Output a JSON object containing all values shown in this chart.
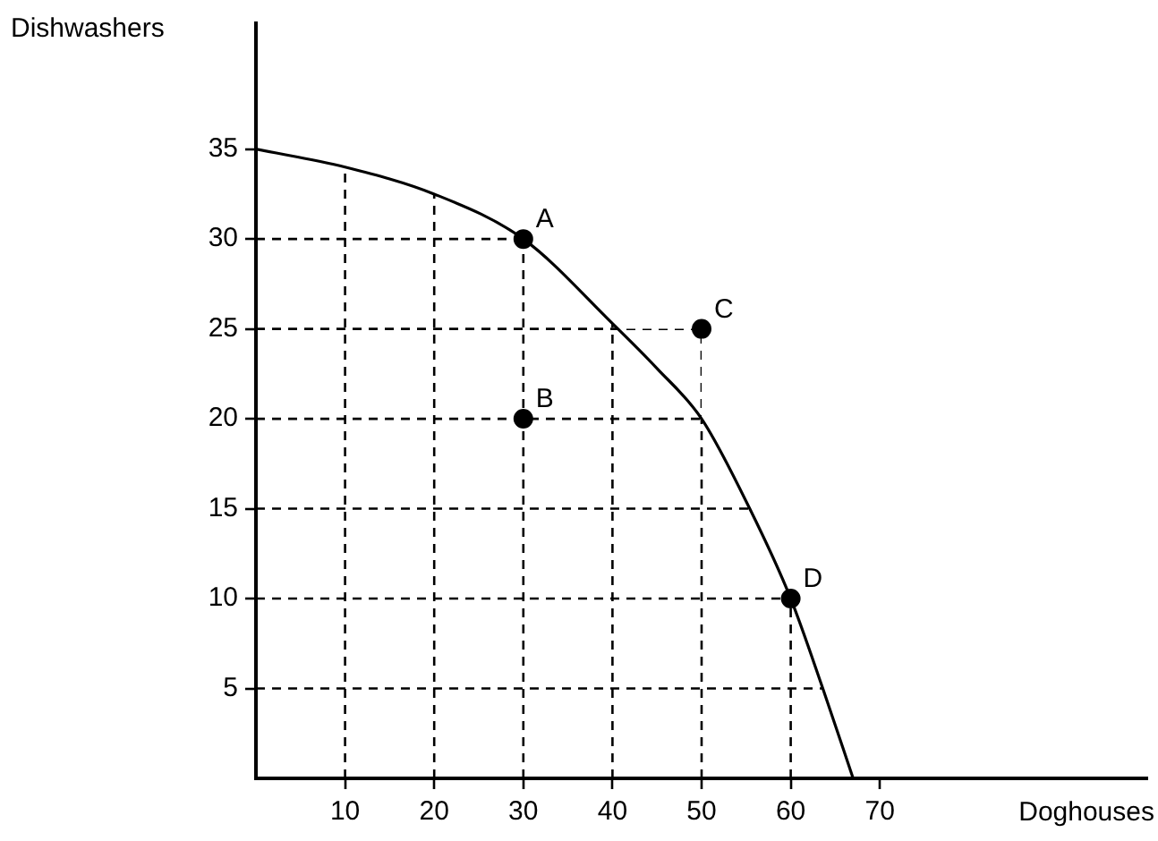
{
  "chart_data": {
    "type": "line",
    "xlabel": "Doghouses",
    "ylabel": "Dishwashers",
    "xlim": [
      0,
      100
    ],
    "xticks": [
      10,
      20,
      30,
      40,
      50,
      60,
      70
    ],
    "ylim": [
      0,
      42
    ],
    "yticks": [
      5,
      10,
      15,
      20,
      25,
      30,
      35
    ],
    "grid": true,
    "series": [
      {
        "color": "#000000",
        "marker": "none",
        "x": [
          0,
          10,
          20,
          30,
          40,
          45,
          50,
          55.4,
          60,
          63.6,
          67
        ],
        "values": [
          35,
          34,
          32.5,
          30,
          25.3,
          22.8,
          20,
          15,
          10,
          5,
          0
        ]
      },
      {
        "type": "scatter",
        "color": "#000000",
        "marker": "circle",
        "x": [
          30,
          30,
          50,
          60
        ],
        "values": [
          30,
          20,
          25,
          10
        ]
      }
    ],
    "annotations": [
      {
        "text": "A",
        "x": 30,
        "y": 30
      },
      {
        "text": "B",
        "x": 30,
        "y": 20
      },
      {
        "text": "C",
        "x": 50,
        "y": 25
      },
      {
        "text": "D",
        "x": 60,
        "y": 10
      }
    ]
  }
}
